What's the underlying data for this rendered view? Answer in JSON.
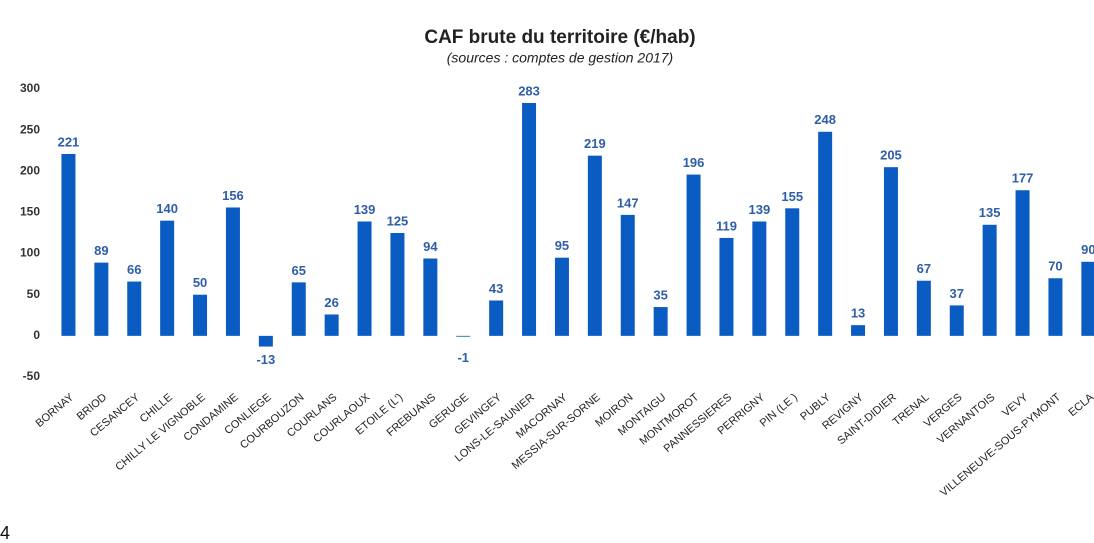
{
  "chart_data": {
    "type": "bar",
    "title": "CAF brute du territoire (€/hab)",
    "subtitle": "(sources : comptes de gestion 2017)",
    "categories": [
      "BORNAY",
      "BRIOD",
      "CESANCEY",
      "CHILLE",
      "CHILLY LE VIGNOBLE",
      "CONDAMINE",
      "CONLIEGE",
      "COURBOUZON",
      "COURLANS",
      "COURLAOUX",
      "ETOILE (L')",
      "FREBUANS",
      "GERUGE",
      "GEVINGEY",
      "LONS-LE-SAUNIER",
      "MACORNAY",
      "MESSIA-SUR-SORNE",
      "MOIRON",
      "MONTAIGU",
      "MONTMOROT",
      "PANNESSIERES",
      "PERRIGNY",
      "PIN (LE )",
      "PUBLY",
      "REVIGNY",
      "SAINT-DIDIER",
      "TRENAL",
      "VERGES",
      "VERNANTOIS",
      "VEVY",
      "VILLENEUVE-SOUS-PYMONT",
      "ECLA"
    ],
    "values": [
      221,
      89,
      66,
      140,
      50,
      156,
      -13,
      65,
      26,
      139,
      125,
      94,
      -1,
      43,
      283,
      95,
      219,
      147,
      35,
      196,
      119,
      139,
      155,
      248,
      13,
      205,
      67,
      37,
      135,
      177,
      70,
      90
    ],
    "color": "#0a5cc2",
    "label_color": "#2f5ea8",
    "ylim": [
      -50,
      300
    ],
    "yticks": [
      -50,
      0,
      50,
      100,
      150,
      200,
      250,
      300
    ],
    "grid": false
  },
  "page_number": "4"
}
